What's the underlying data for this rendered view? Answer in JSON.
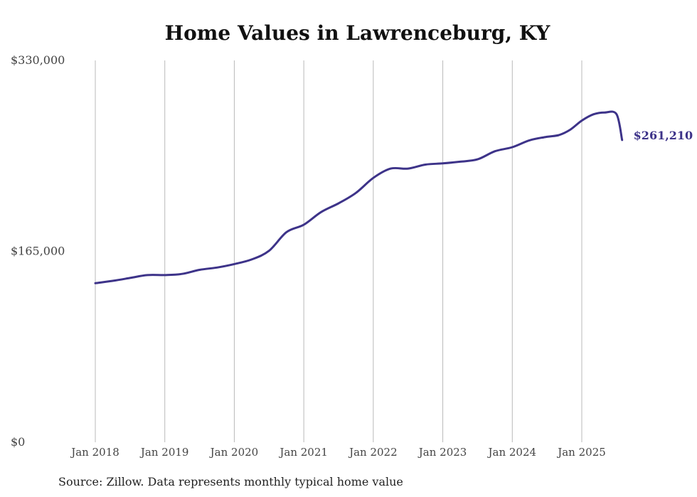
{
  "chart_data": {
    "type": "line",
    "title": "Home Values in Lawrenceburg, KY",
    "xlabel": "",
    "ylabel": "",
    "ylim": [
      0,
      330000
    ],
    "yticks": [
      0,
      165000,
      330000
    ],
    "ytick_labels": [
      "$0",
      "$165,000",
      "$330,000"
    ],
    "x_tick_labels": [
      "Jan 2018",
      "Jan 2019",
      "Jan 2020",
      "Jan 2021",
      "Jan 2022",
      "Jan 2023",
      "Jan 2024",
      "Jan 2025"
    ],
    "grid": "vertical",
    "line_color": "#3d3389",
    "end_value_label": "$261,210",
    "series": [
      {
        "name": "Typical home value",
        "x": [
          2018.0,
          2018.25,
          2018.5,
          2018.75,
          2019.0,
          2019.25,
          2019.5,
          2019.75,
          2020.0,
          2020.25,
          2020.5,
          2020.75,
          2021.0,
          2021.25,
          2021.5,
          2021.75,
          2022.0,
          2022.25,
          2022.5,
          2022.75,
          2023.0,
          2023.25,
          2023.5,
          2023.75,
          2024.0,
          2024.25,
          2024.5,
          2024.67,
          2024.83,
          2025.0,
          2025.17,
          2025.33,
          2025.5,
          2025.58
        ],
        "values": [
          137500,
          139500,
          142000,
          144500,
          144500,
          145500,
          149000,
          151000,
          154000,
          158000,
          165500,
          181500,
          188000,
          199000,
          206500,
          215500,
          228500,
          236500,
          236500,
          240000,
          241000,
          242500,
          244500,
          251500,
          255000,
          261000,
          264000,
          265500,
          270000,
          278000,
          283500,
          285000,
          283500,
          261210
        ]
      }
    ]
  },
  "source_note": "Source: Zillow. Data represents monthly typical home value"
}
